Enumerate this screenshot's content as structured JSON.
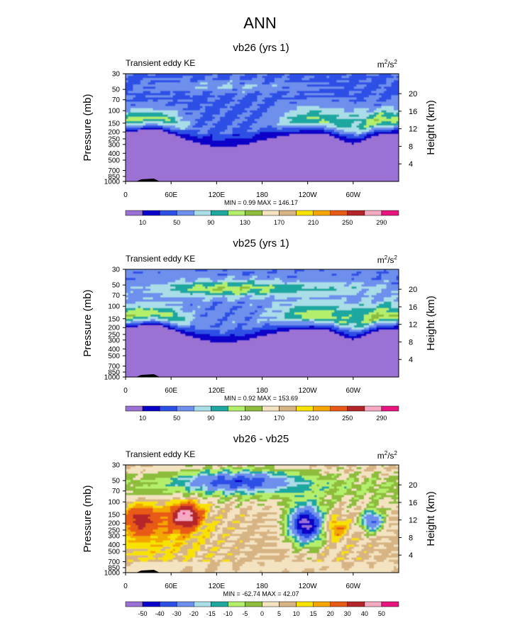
{
  "page_title": "ANN",
  "colors": {
    "cmap_abs": [
      "#9b72d4",
      "#0a00c8",
      "#2e50e6",
      "#6e8fec",
      "#a9dde7",
      "#1ea8a0",
      "#b4ef6c",
      "#8dbd3a",
      "#f4e3c1",
      "#d7b483",
      "#f7e200",
      "#f4a600",
      "#e85a17",
      "#b4262a",
      "#f5a9c2",
      "#e8157f"
    ],
    "cmap_diff": [
      "#9b72d4",
      "#0a00c8",
      "#2e50e6",
      "#6e8fec",
      "#a9dde7",
      "#1ea8a0",
      "#b4ef6c",
      "#8dbd3a",
      "#f4e3c1",
      "#d7b483",
      "#f7e200",
      "#f4a600",
      "#e85a17",
      "#b4262a",
      "#f5a9c2",
      "#e8157f"
    ]
  },
  "chart_data": [
    {
      "type": "heatmap",
      "title": "vb26 (yrs 1)",
      "left_label": "Transient eddy KE",
      "units_base": "m",
      "units_exp1": "2",
      "units_mid": "/s",
      "units_exp2": "2",
      "ylabel": "Pressure (mb)",
      "ylabel_right": "Height (km)",
      "x_ticks": [
        "0",
        "60E",
        "120E",
        "180",
        "120W",
        "60W"
      ],
      "x_tick_lon": [
        0,
        60,
        120,
        180,
        240,
        300
      ],
      "xlim": [
        0,
        360
      ],
      "y_ticks": [
        "30",
        "50",
        "70",
        "100",
        "150",
        "200",
        "250",
        "300",
        "400",
        "500",
        "700",
        "850",
        "1000"
      ],
      "y_tick_values": [
        30,
        50,
        70,
        100,
        150,
        200,
        250,
        300,
        400,
        500,
        700,
        850,
        1000
      ],
      "ylim": [
        30,
        1000
      ],
      "height_ticks": [
        "4",
        "8",
        "12",
        "16",
        "20"
      ],
      "height_values": [
        4,
        8,
        12,
        16,
        20
      ],
      "min_max_text": "MIN =   0.99  MAX = 146.17",
      "colorbar_labels": [
        "10",
        "50",
        "90",
        "130",
        "170",
        "210",
        "250",
        "290"
      ],
      "colorbar_levels": [
        0,
        10,
        30,
        50,
        70,
        90,
        110,
        130,
        150,
        170,
        190,
        210,
        230,
        250,
        270,
        290,
        310
      ],
      "field": "vb26"
    },
    {
      "type": "heatmap",
      "title": "vb25 (yrs 1)",
      "left_label": "Transient eddy KE",
      "units_base": "m",
      "units_exp1": "2",
      "units_mid": "/s",
      "units_exp2": "2",
      "ylabel": "Pressure (mb)",
      "ylabel_right": "Height (km)",
      "x_ticks": [
        "0",
        "60E",
        "120E",
        "180",
        "120W",
        "60W"
      ],
      "x_tick_lon": [
        0,
        60,
        120,
        180,
        240,
        300
      ],
      "xlim": [
        0,
        360
      ],
      "y_ticks": [
        "30",
        "50",
        "70",
        "100",
        "150",
        "200",
        "250",
        "300",
        "400",
        "500",
        "700",
        "850",
        "1000"
      ],
      "y_tick_values": [
        30,
        50,
        70,
        100,
        150,
        200,
        250,
        300,
        400,
        500,
        700,
        850,
        1000
      ],
      "ylim": [
        30,
        1000
      ],
      "height_ticks": [
        "4",
        "8",
        "12",
        "16",
        "20"
      ],
      "height_values": [
        4,
        8,
        12,
        16,
        20
      ],
      "min_max_text": "MIN =   0.92  MAX = 153.69",
      "colorbar_labels": [
        "10",
        "50",
        "90",
        "130",
        "170",
        "210",
        "250",
        "290"
      ],
      "colorbar_levels": [
        0,
        10,
        30,
        50,
        70,
        90,
        110,
        130,
        150,
        170,
        190,
        210,
        230,
        250,
        270,
        290,
        310
      ],
      "field": "vb25"
    },
    {
      "type": "heatmap",
      "title": "vb26 - vb25",
      "left_label": "Transient eddy KE",
      "units_base": "m",
      "units_exp1": "2",
      "units_mid": "/s",
      "units_exp2": "2",
      "ylabel": "Pressure (mb)",
      "ylabel_right": "Height (km)",
      "x_ticks": [
        "0",
        "60E",
        "120E",
        "180",
        "120W",
        "60W"
      ],
      "x_tick_lon": [
        0,
        60,
        120,
        180,
        240,
        300
      ],
      "xlim": [
        0,
        360
      ],
      "y_ticks": [
        "30",
        "50",
        "70",
        "100",
        "150",
        "200",
        "250",
        "300",
        "400",
        "500",
        "700",
        "850",
        "1000"
      ],
      "y_tick_values": [
        30,
        50,
        70,
        100,
        150,
        200,
        250,
        300,
        400,
        500,
        700,
        850,
        1000
      ],
      "ylim": [
        30,
        1000
      ],
      "height_ticks": [
        "4",
        "8",
        "12",
        "16",
        "20"
      ],
      "height_values": [
        4,
        8,
        12,
        16,
        20
      ],
      "min_max_text": "MIN = -62.74  MAX =  42.07",
      "colorbar_labels": [
        "-50",
        "-40",
        "-30",
        "-20",
        "-15",
        "-10",
        "-5",
        "0",
        "5",
        "10",
        "15",
        "20",
        "30",
        "40",
        "50"
      ],
      "colorbar_levels": [
        -60,
        -50,
        -40,
        -30,
        -20,
        -15,
        -10,
        -5,
        0,
        5,
        10,
        15,
        20,
        30,
        40,
        50,
        60
      ],
      "field": "diff"
    }
  ]
}
